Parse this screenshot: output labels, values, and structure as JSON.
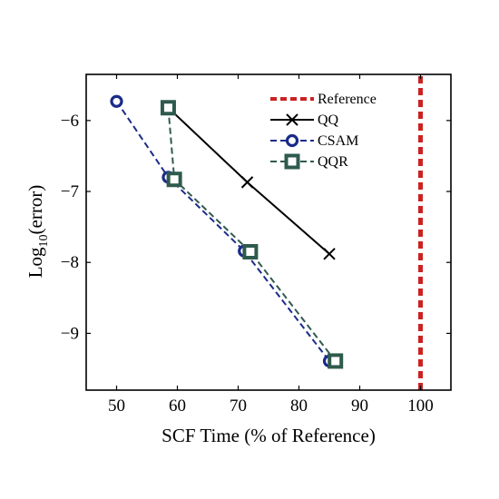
{
  "chart_data": {
    "type": "line",
    "xlabel": "SCF Time (% of Reference)",
    "ylabel_base": "Log",
    "ylabel_sub": "10",
    "ylabel_rest": "(error)",
    "xlim": [
      45,
      105
    ],
    "ylim": [
      -9.8,
      -5.35
    ],
    "xticks": [
      50,
      60,
      70,
      80,
      90,
      100
    ],
    "yticks": [
      -6,
      -7,
      -8,
      -9
    ],
    "ytick_labels": [
      "−6",
      "−7",
      "−8",
      "−9"
    ],
    "grid": false,
    "legend_position": "top-right",
    "reference_x": 100,
    "series": [
      {
        "name": "Reference",
        "style": "dashed",
        "marker": "none",
        "color": "#cc2222",
        "x": [
          100,
          100
        ],
        "y": [
          -9.8,
          -5.35
        ]
      },
      {
        "name": "QQ",
        "style": "solid",
        "marker": "x",
        "color": "#000000",
        "x": [
          58.5,
          71.5,
          85
        ],
        "y": [
          -5.82,
          -6.87,
          -7.88
        ]
      },
      {
        "name": "CSAM",
        "style": "dashed",
        "marker": "circle",
        "color": "#1a2b8a",
        "x": [
          50,
          58.5,
          71,
          85
        ],
        "y": [
          -5.73,
          -6.8,
          -7.84,
          -9.39
        ]
      },
      {
        "name": "QQR",
        "style": "dashed",
        "marker": "square",
        "color": "#2f5a4e",
        "x": [
          58.5,
          59.5,
          72,
          86
        ],
        "y": [
          -5.82,
          -6.83,
          -7.85,
          -9.39
        ]
      }
    ]
  }
}
